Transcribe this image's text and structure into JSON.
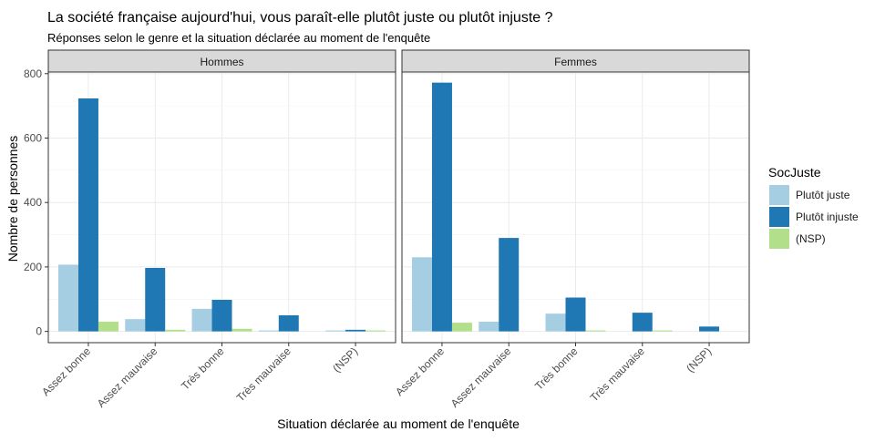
{
  "chart_data": {
    "type": "bar",
    "title": "La société française aujourd'hui, vous paraît-elle plutôt juste ou plutôt injuste ?",
    "subtitle": "Réponses selon le genre et la situation déclarée au moment de l'enquête",
    "xlabel": "Situation déclarée au moment de l'enquête",
    "ylabel": "Nombre de personnes",
    "categories": [
      "Assez bonne",
      "Assez mauvaise",
      "Très bonne",
      "Très mauvaise",
      "(NSP)"
    ],
    "yticks": [
      0,
      200,
      400,
      600,
      800
    ],
    "ylim": [
      -35,
      805
    ],
    "grid": true,
    "legend": {
      "title": "SocJuste",
      "placement": "right",
      "entries": [
        "Plutôt juste",
        "Plutôt injuste",
        "(NSP)"
      ]
    },
    "series_colors": [
      "#a6cee3",
      "#1f78b4",
      "#b2df8a"
    ],
    "facets": [
      {
        "label": "Hommes",
        "series": [
          {
            "name": "Plutôt juste",
            "values": [
              207,
              38,
              70,
              3,
              3
            ]
          },
          {
            "name": "Plutôt injuste",
            "values": [
              723,
              197,
              98,
              50,
              5
            ]
          },
          {
            "name": "(NSP)",
            "values": [
              30,
              5,
              8,
              0,
              3
            ]
          }
        ]
      },
      {
        "label": "Femmes",
        "series": [
          {
            "name": "Plutôt juste",
            "values": [
              230,
              30,
              55,
              0,
              0
            ]
          },
          {
            "name": "Plutôt injuste",
            "values": [
              772,
              290,
              105,
              58,
              15
            ]
          },
          {
            "name": "(NSP)",
            "values": [
              27,
              0,
              3,
              3,
              0
            ]
          }
        ]
      }
    ]
  }
}
